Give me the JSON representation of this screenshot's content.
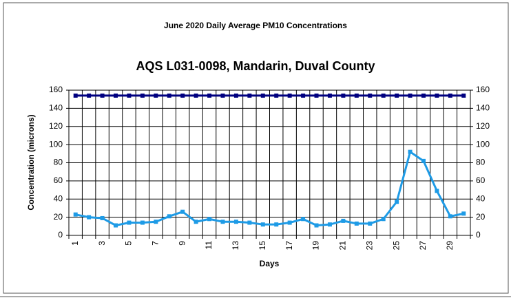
{
  "chart_data": {
    "type": "line",
    "title": "June 2020 Daily Average PM10 Concentrations",
    "subtitle": "AQS L031-0098, Mandarin, Duval County",
    "y_label": "Concentration (microns)",
    "x_label": "Days",
    "categories": [
      "1",
      null,
      "3",
      null,
      "5",
      null,
      "7",
      null,
      "9",
      null,
      "11",
      null,
      "13",
      null,
      "15",
      null,
      "17",
      null,
      "19",
      null,
      "21",
      null,
      "23",
      null,
      "25",
      null,
      "27",
      null,
      "29",
      null
    ],
    "series": [
      {
        "color": "#000080",
        "values": [
          154,
          154,
          154,
          154,
          154,
          154,
          154,
          154,
          154,
          154,
          154,
          154,
          154,
          154,
          154,
          154,
          154,
          154,
          154,
          154,
          154,
          154,
          154,
          154,
          154,
          154,
          154,
          154,
          154,
          154
        ]
      },
      {
        "color": "#1e9be6",
        "values": [
          23,
          20,
          19,
          11,
          14,
          14,
          15,
          21,
          26,
          15,
          18,
          15,
          15,
          14,
          12,
          12,
          14,
          18,
          11,
          12,
          16,
          13,
          13,
          18,
          37,
          92,
          82,
          49,
          21,
          24
        ]
      }
    ],
    "ylim": [
      0,
      160
    ],
    "yticks": [
      0,
      20,
      40,
      60,
      80,
      100,
      120,
      140,
      160
    ],
    "grid": true
  }
}
